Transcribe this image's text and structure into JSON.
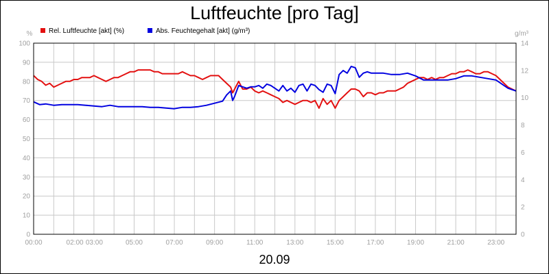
{
  "chart_data": {
    "type": "line",
    "title": "Luftfeuchte [pro Tag]",
    "date_label": "20.09",
    "left_unit": "%",
    "right_unit": "g/m³",
    "left_ylim": [
      0,
      100
    ],
    "right_ylim": [
      0,
      14
    ],
    "left_ticks": [
      "0",
      "10",
      "20",
      "30",
      "40",
      "50",
      "60",
      "70",
      "80",
      "90",
      "100"
    ],
    "right_ticks": [
      "0",
      "2",
      "4",
      "6",
      "8",
      "10",
      "12",
      "14"
    ],
    "x_range_hours": [
      0,
      24
    ],
    "x_tick_labels": [
      {
        "h": 0,
        "label": "00:00"
      },
      {
        "h": 2,
        "label": "02:00"
      },
      {
        "h": 3,
        "label": "03:00"
      },
      {
        "h": 5,
        "label": "05:00"
      },
      {
        "h": 7,
        "label": "07:00"
      },
      {
        "h": 9,
        "label": "09:00"
      },
      {
        "h": 11,
        "label": "11:00"
      },
      {
        "h": 13,
        "label": "13:00"
      },
      {
        "h": 15,
        "label": "15:00"
      },
      {
        "h": 17,
        "label": "17:00"
      },
      {
        "h": 19,
        "label": "19:00"
      },
      {
        "h": 21,
        "label": "21:00"
      },
      {
        "h": 23,
        "label": "23:00"
      }
    ],
    "grid": true,
    "legend_position": "top-left",
    "series": [
      {
        "name": "Rel. Luftfeuchte [akt] (%)",
        "color": "#e31010",
        "axis": "left",
        "points": [
          [
            0,
            83
          ],
          [
            0.2,
            81
          ],
          [
            0.4,
            80
          ],
          [
            0.6,
            78
          ],
          [
            0.8,
            79
          ],
          [
            1.0,
            77
          ],
          [
            1.2,
            78
          ],
          [
            1.4,
            79
          ],
          [
            1.6,
            80
          ],
          [
            1.8,
            80
          ],
          [
            2.0,
            81
          ],
          [
            2.2,
            81
          ],
          [
            2.4,
            82
          ],
          [
            2.6,
            82
          ],
          [
            2.8,
            82
          ],
          [
            3.0,
            83
          ],
          [
            3.2,
            82
          ],
          [
            3.4,
            81
          ],
          [
            3.6,
            80
          ],
          [
            3.8,
            81
          ],
          [
            4.0,
            82
          ],
          [
            4.2,
            82
          ],
          [
            4.4,
            83
          ],
          [
            4.6,
            84
          ],
          [
            4.8,
            85
          ],
          [
            5.0,
            85
          ],
          [
            5.2,
            86
          ],
          [
            5.4,
            86
          ],
          [
            5.6,
            86
          ],
          [
            5.8,
            86
          ],
          [
            6.0,
            85
          ],
          [
            6.2,
            85
          ],
          [
            6.4,
            84
          ],
          [
            6.6,
            84
          ],
          [
            6.8,
            84
          ],
          [
            7.0,
            84
          ],
          [
            7.2,
            84
          ],
          [
            7.4,
            85
          ],
          [
            7.6,
            84
          ],
          [
            7.8,
            83
          ],
          [
            8.0,
            83
          ],
          [
            8.2,
            82
          ],
          [
            8.4,
            81
          ],
          [
            8.6,
            82
          ],
          [
            8.8,
            83
          ],
          [
            9.0,
            83
          ],
          [
            9.2,
            83
          ],
          [
            9.4,
            81
          ],
          [
            9.6,
            79
          ],
          [
            9.8,
            77
          ],
          [
            9.9,
            74
          ],
          [
            10.0,
            76
          ],
          [
            10.2,
            80
          ],
          [
            10.4,
            76
          ],
          [
            10.6,
            76
          ],
          [
            10.8,
            77
          ],
          [
            11.0,
            75
          ],
          [
            11.2,
            74
          ],
          [
            11.4,
            75
          ],
          [
            11.6,
            74
          ],
          [
            11.8,
            73
          ],
          [
            12.0,
            72
          ],
          [
            12.2,
            71
          ],
          [
            12.4,
            69
          ],
          [
            12.6,
            70
          ],
          [
            12.8,
            69
          ],
          [
            13.0,
            68
          ],
          [
            13.2,
            69
          ],
          [
            13.4,
            70
          ],
          [
            13.6,
            70
          ],
          [
            13.8,
            69
          ],
          [
            14.0,
            70
          ],
          [
            14.2,
            66
          ],
          [
            14.4,
            71
          ],
          [
            14.6,
            68
          ],
          [
            14.8,
            70
          ],
          [
            15.0,
            66
          ],
          [
            15.2,
            70
          ],
          [
            15.4,
            72
          ],
          [
            15.6,
            74
          ],
          [
            15.8,
            76
          ],
          [
            16.0,
            76
          ],
          [
            16.2,
            75
          ],
          [
            16.4,
            72
          ],
          [
            16.6,
            74
          ],
          [
            16.8,
            74
          ],
          [
            17.0,
            73
          ],
          [
            17.2,
            74
          ],
          [
            17.4,
            74
          ],
          [
            17.6,
            75
          ],
          [
            17.8,
            75
          ],
          [
            18.0,
            75
          ],
          [
            18.2,
            76
          ],
          [
            18.4,
            77
          ],
          [
            18.6,
            79
          ],
          [
            18.8,
            80
          ],
          [
            19.0,
            81
          ],
          [
            19.2,
            82
          ],
          [
            19.4,
            82
          ],
          [
            19.6,
            81
          ],
          [
            19.8,
            82
          ],
          [
            20.0,
            81
          ],
          [
            20.2,
            82
          ],
          [
            20.4,
            82
          ],
          [
            20.6,
            83
          ],
          [
            20.8,
            84
          ],
          [
            21.0,
            84
          ],
          [
            21.2,
            85
          ],
          [
            21.4,
            85
          ],
          [
            21.6,
            86
          ],
          [
            21.8,
            85
          ],
          [
            22.0,
            84
          ],
          [
            22.2,
            84
          ],
          [
            22.4,
            85
          ],
          [
            22.6,
            85
          ],
          [
            22.8,
            84
          ],
          [
            23.0,
            83
          ],
          [
            23.2,
            81
          ],
          [
            23.4,
            79
          ],
          [
            23.6,
            77
          ],
          [
            23.8,
            76
          ],
          [
            24.0,
            75
          ]
        ]
      },
      {
        "name": "Abs. Feuchtegehalt [akt] (g/m³)",
        "color": "#0000e0",
        "axis": "right",
        "points": [
          [
            0,
            9.7
          ],
          [
            0.3,
            9.5
          ],
          [
            0.6,
            9.55
          ],
          [
            1.0,
            9.45
          ],
          [
            1.4,
            9.5
          ],
          [
            1.8,
            9.5
          ],
          [
            2.2,
            9.5
          ],
          [
            2.6,
            9.45
          ],
          [
            3.0,
            9.4
          ],
          [
            3.4,
            9.35
          ],
          [
            3.8,
            9.45
          ],
          [
            4.2,
            9.35
          ],
          [
            4.6,
            9.35
          ],
          [
            5.0,
            9.35
          ],
          [
            5.4,
            9.35
          ],
          [
            5.8,
            9.3
          ],
          [
            6.2,
            9.3
          ],
          [
            6.6,
            9.25
          ],
          [
            7.0,
            9.2
          ],
          [
            7.4,
            9.3
          ],
          [
            7.8,
            9.3
          ],
          [
            8.2,
            9.35
          ],
          [
            8.6,
            9.45
          ],
          [
            9.0,
            9.6
          ],
          [
            9.4,
            9.75
          ],
          [
            9.6,
            10.2
          ],
          [
            9.8,
            10.5
          ],
          [
            9.9,
            9.8
          ],
          [
            10.0,
            10.1
          ],
          [
            10.2,
            10.9
          ],
          [
            10.4,
            10.8
          ],
          [
            10.6,
            10.7
          ],
          [
            10.8,
            10.8
          ],
          [
            11.0,
            10.8
          ],
          [
            11.2,
            10.9
          ],
          [
            11.4,
            10.7
          ],
          [
            11.6,
            11.0
          ],
          [
            11.8,
            10.9
          ],
          [
            12.0,
            10.7
          ],
          [
            12.2,
            10.5
          ],
          [
            12.4,
            10.9
          ],
          [
            12.6,
            10.5
          ],
          [
            12.8,
            10.7
          ],
          [
            13.0,
            10.4
          ],
          [
            13.2,
            10.9
          ],
          [
            13.4,
            11.0
          ],
          [
            13.6,
            10.5
          ],
          [
            13.8,
            11.0
          ],
          [
            14.0,
            10.9
          ],
          [
            14.2,
            10.6
          ],
          [
            14.4,
            10.4
          ],
          [
            14.6,
            11.0
          ],
          [
            14.8,
            10.9
          ],
          [
            15.0,
            10.3
          ],
          [
            15.2,
            11.7
          ],
          [
            15.4,
            12.0
          ],
          [
            15.6,
            11.8
          ],
          [
            15.8,
            12.3
          ],
          [
            16.0,
            12.2
          ],
          [
            16.2,
            11.5
          ],
          [
            16.4,
            11.8
          ],
          [
            16.6,
            11.9
          ],
          [
            16.8,
            11.8
          ],
          [
            17.0,
            11.8
          ],
          [
            17.4,
            11.8
          ],
          [
            17.8,
            11.7
          ],
          [
            18.2,
            11.7
          ],
          [
            18.6,
            11.8
          ],
          [
            19.0,
            11.6
          ],
          [
            19.4,
            11.3
          ],
          [
            19.8,
            11.3
          ],
          [
            20.2,
            11.3
          ],
          [
            20.6,
            11.3
          ],
          [
            21.0,
            11.4
          ],
          [
            21.4,
            11.6
          ],
          [
            21.8,
            11.6
          ],
          [
            22.2,
            11.5
          ],
          [
            22.6,
            11.4
          ],
          [
            23.0,
            11.3
          ],
          [
            23.2,
            11.1
          ],
          [
            23.4,
            10.9
          ],
          [
            23.6,
            10.7
          ],
          [
            23.8,
            10.6
          ],
          [
            24.0,
            10.5
          ]
        ]
      }
    ]
  }
}
